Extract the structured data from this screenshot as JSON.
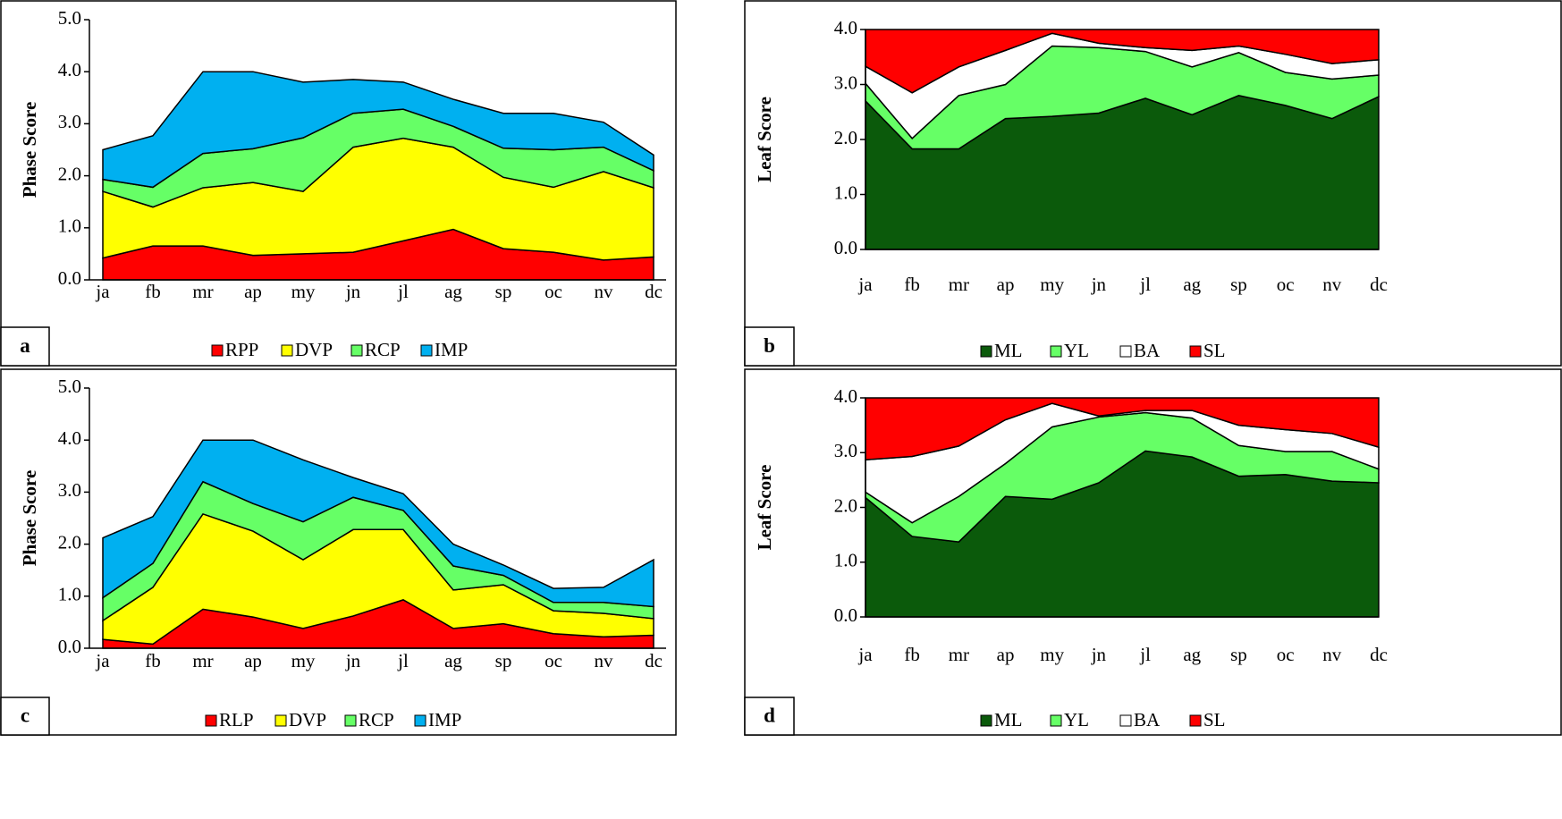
{
  "chart_data": [
    {
      "type": "area",
      "stacked": true,
      "label": "a",
      "ylabel": "Phase Score",
      "categories": [
        "ja",
        "fb",
        "mr",
        "ap",
        "my",
        "jn",
        "jl",
        "ag",
        "sp",
        "oc",
        "nv",
        "dc"
      ],
      "ylim": [
        0,
        5
      ],
      "yticks": [
        {
          "value": 0,
          "label": "0.0"
        },
        {
          "value": 1,
          "label": "1.0"
        },
        {
          "value": 2,
          "label": "2.0"
        },
        {
          "value": 3,
          "label": "3.0"
        },
        {
          "value": 4,
          "label": "4.0"
        },
        {
          "value": 5,
          "label": "5.0"
        }
      ],
      "series": [
        {
          "name": "RPP",
          "color": "#ff0000",
          "values": [
            0.42,
            0.65,
            0.65,
            0.47,
            0.5,
            0.53,
            0.75,
            0.97,
            0.6,
            0.53,
            0.38,
            0.44
          ]
        },
        {
          "name": "DVP",
          "color": "#ffff00",
          "values": [
            1.28,
            0.75,
            1.12,
            1.4,
            1.2,
            2.02,
            1.97,
            1.58,
            1.37,
            1.25,
            1.7,
            1.33
          ]
        },
        {
          "name": "RCP",
          "color": "#66ff66",
          "values": [
            0.23,
            0.38,
            0.66,
            0.65,
            1.03,
            0.65,
            0.56,
            0.4,
            0.56,
            0.72,
            0.47,
            0.33
          ]
        },
        {
          "name": "IMP",
          "color": "#00b0f0",
          "values": [
            0.57,
            0.99,
            1.57,
            1.48,
            1.07,
            0.65,
            0.52,
            0.52,
            0.67,
            0.7,
            0.48,
            0.3
          ]
        }
      ]
    },
    {
      "type": "area",
      "stacked": true,
      "label": "b",
      "ylabel": "Leaf Score",
      "categories": [
        "ja",
        "fb",
        "mr",
        "ap",
        "my",
        "jn",
        "jl",
        "ag",
        "sp",
        "oc",
        "nv",
        "dc"
      ],
      "ylim": [
        0,
        4
      ],
      "yticks": [
        {
          "value": 0,
          "label": "0.0"
        },
        {
          "value": 1,
          "label": "1.0"
        },
        {
          "value": 2,
          "label": "2.0"
        },
        {
          "value": 3,
          "label": "3.0"
        },
        {
          "value": 4,
          "label": "4.0"
        }
      ],
      "series": [
        {
          "name": "ML",
          "color": "#0b5a0b",
          "values": [
            2.7,
            1.83,
            1.83,
            2.38,
            2.42,
            2.48,
            2.75,
            2.45,
            2.8,
            2.62,
            2.38,
            2.78
          ]
        },
        {
          "name": "YL",
          "color": "#66ff66",
          "values": [
            0.32,
            0.19,
            0.97,
            0.62,
            1.28,
            1.19,
            0.85,
            0.87,
            0.78,
            0.6,
            0.72,
            0.39
          ]
        },
        {
          "name": "BA",
          "color": "#ffffff",
          "values": [
            0.31,
            0.83,
            0.52,
            0.62,
            0.23,
            0.08,
            0.07,
            0.3,
            0.12,
            0.33,
            0.28,
            0.28
          ]
        },
        {
          "name": "SL",
          "color": "#ff0000",
          "values": [
            0.67,
            1.15,
            0.68,
            0.38,
            0.07,
            0.25,
            0.33,
            0.38,
            0.3,
            0.45,
            0.62,
            0.55
          ]
        }
      ]
    },
    {
      "type": "area",
      "stacked": true,
      "label": "c",
      "ylabel": "Phase Score",
      "categories": [
        "ja",
        "fb",
        "mr",
        "ap",
        "my",
        "jn",
        "jl",
        "ag",
        "sp",
        "oc",
        "nv",
        "dc"
      ],
      "ylim": [
        0,
        5
      ],
      "yticks": [
        {
          "value": 0,
          "label": "0.0"
        },
        {
          "value": 1,
          "label": "1.0"
        },
        {
          "value": 2,
          "label": "2.0"
        },
        {
          "value": 3,
          "label": "3.0"
        },
        {
          "value": 4,
          "label": "4.0"
        },
        {
          "value": 5,
          "label": "5.0"
        }
      ],
      "series": [
        {
          "name": "RLP",
          "color": "#ff0000",
          "values": [
            0.17,
            0.08,
            0.75,
            0.6,
            0.38,
            0.62,
            0.93,
            0.38,
            0.47,
            0.28,
            0.22,
            0.25
          ]
        },
        {
          "name": "DVP",
          "color": "#ffff00",
          "values": [
            0.36,
            1.09,
            1.83,
            1.65,
            1.32,
            1.66,
            1.35,
            0.74,
            0.75,
            0.44,
            0.45,
            0.32
          ]
        },
        {
          "name": "RCP",
          "color": "#66ff66",
          "values": [
            0.44,
            0.46,
            0.62,
            0.53,
            0.73,
            0.62,
            0.37,
            0.46,
            0.18,
            0.16,
            0.21,
            0.23
          ]
        },
        {
          "name": "IMP",
          "color": "#00b0f0",
          "values": [
            1.15,
            0.9,
            0.8,
            1.22,
            1.19,
            0.38,
            0.32,
            0.42,
            0.2,
            0.27,
            0.29,
            0.9
          ]
        }
      ]
    },
    {
      "type": "area",
      "stacked": true,
      "label": "d",
      "ylabel": "Leaf Score",
      "categories": [
        "ja",
        "fb",
        "mr",
        "ap",
        "my",
        "jn",
        "jl",
        "ag",
        "sp",
        "oc",
        "nv",
        "dc"
      ],
      "ylim": [
        0,
        4
      ],
      "yticks": [
        {
          "value": 0,
          "label": "0.0"
        },
        {
          "value": 1,
          "label": "1.0"
        },
        {
          "value": 2,
          "label": "2.0"
        },
        {
          "value": 3,
          "label": "3.0"
        },
        {
          "value": 4,
          "label": "4.0"
        }
      ],
      "series": [
        {
          "name": "ML",
          "color": "#0b5a0b",
          "values": [
            2.18,
            1.47,
            1.37,
            2.2,
            2.15,
            2.45,
            3.03,
            2.92,
            2.57,
            2.6,
            2.48,
            2.45
          ]
        },
        {
          "name": "YL",
          "color": "#66ff66",
          "values": [
            0.1,
            0.25,
            0.83,
            0.6,
            1.32,
            1.2,
            0.7,
            0.71,
            0.56,
            0.42,
            0.54,
            0.25
          ]
        },
        {
          "name": "BA",
          "color": "#ffffff",
          "values": [
            0.59,
            1.21,
            0.92,
            0.8,
            0.43,
            0.02,
            0.04,
            0.14,
            0.37,
            0.4,
            0.33,
            0.4
          ]
        },
        {
          "name": "SL",
          "color": "#ff0000",
          "values": [
            1.13,
            1.07,
            0.88,
            0.4,
            0.1,
            0.33,
            0.23,
            0.23,
            0.5,
            0.58,
            0.65,
            0.9
          ]
        }
      ]
    }
  ]
}
